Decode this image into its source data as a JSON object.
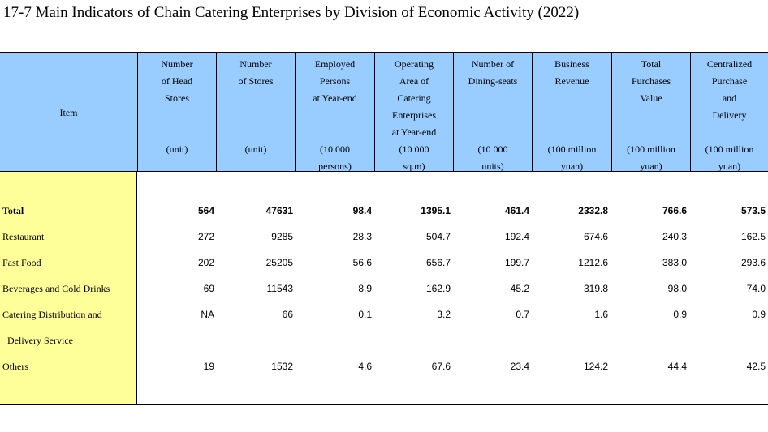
{
  "title": "17-7  Main Indicators of Chain Catering Enterprises by Division of Economic Activity (2022)",
  "header": {
    "item": "Item",
    "columns": [
      {
        "lines": [
          "Number",
          "of Head",
          "Stores"
        ],
        "unit": [
          "(unit)"
        ]
      },
      {
        "lines": [
          "Number",
          "of Stores"
        ],
        "unit": [
          "(unit)"
        ]
      },
      {
        "lines": [
          "Employed",
          "Persons",
          "at Year-end"
        ],
        "unit": [
          "(10 000",
          "persons)"
        ]
      },
      {
        "lines": [
          "Operating",
          "Area of",
          "Catering",
          "Enterprises",
          "at Year-end"
        ],
        "unit": [
          "(10 000",
          "sq.m)"
        ]
      },
      {
        "lines": [
          "Number of",
          "Dining-seats"
        ],
        "unit": [
          "(10 000",
          "units)"
        ]
      },
      {
        "lines": [
          "Business",
          "Revenue"
        ],
        "unit": [
          "(100 million",
          "yuan)"
        ]
      },
      {
        "lines": [
          "Total",
          "Purchases",
          "Value"
        ],
        "unit": [
          "(100 million",
          "yuan)"
        ]
      },
      {
        "lines": [
          "Centralized",
          "Purchase",
          "and",
          "Delivery"
        ],
        "unit": [
          "(100 million",
          "yuan)"
        ]
      }
    ]
  },
  "rows": [
    {
      "label": "Total",
      "values": [
        "564",
        "47631",
        "98.4",
        "1395.1",
        "461.4",
        "2332.8",
        "766.6",
        "573.5"
      ]
    },
    {
      "label": "Restaurant",
      "values": [
        "272",
        "9285",
        "28.3",
        "504.7",
        "192.4",
        "674.6",
        "240.3",
        "162.5"
      ]
    },
    {
      "label": "Fast Food",
      "values": [
        "202",
        "25205",
        "56.6",
        "656.7",
        "199.7",
        "1212.6",
        "383.0",
        "293.6"
      ]
    },
    {
      "label": "Beverages and Cold Drinks",
      "values": [
        "69",
        "11543",
        "8.9",
        "162.9",
        "45.2",
        "319.8",
        "98.0",
        "74.0"
      ]
    },
    {
      "label": "Catering Distribution and",
      "values": [
        "NA",
        "66",
        "0.1",
        "3.2",
        "0.7",
        "1.6",
        "0.9",
        "0.9"
      ]
    },
    {
      "label": "  Delivery Service",
      "values": [
        "",
        "",
        "",
        "",
        "",
        "",
        "",
        ""
      ]
    },
    {
      "label": "Others",
      "values": [
        "19",
        "1532",
        "4.6",
        "67.6",
        "23.4",
        "124.2",
        "44.4",
        "42.5"
      ]
    }
  ]
}
